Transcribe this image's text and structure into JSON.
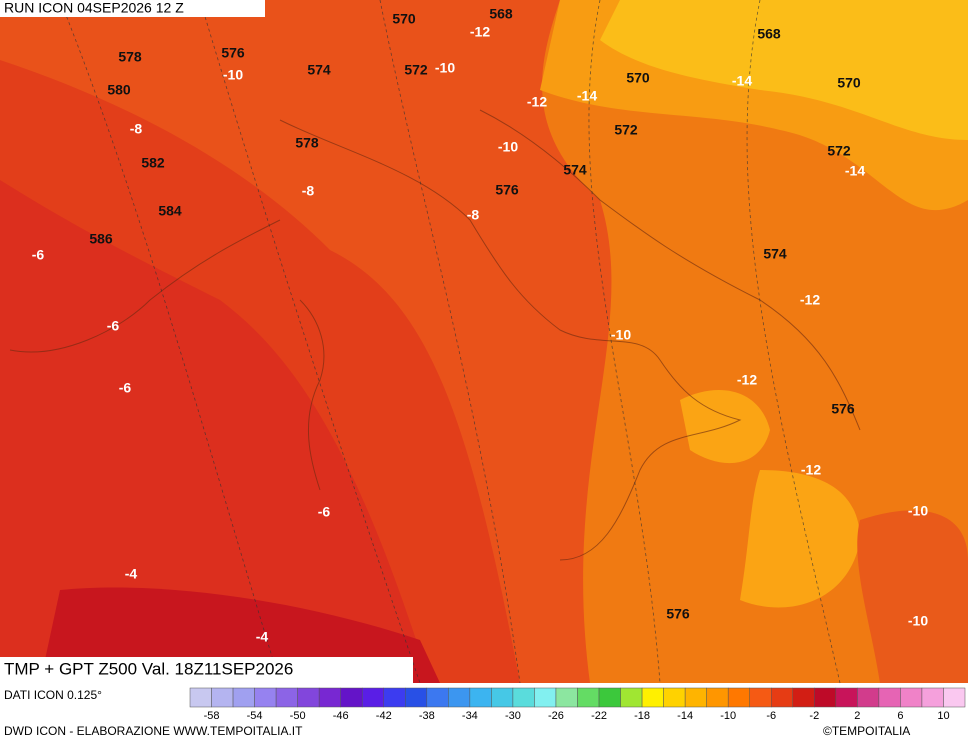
{
  "header": {
    "title": "RUN ICON 04SEP2026 12 Z"
  },
  "footer": {
    "caption": "TMP + GPT Z500 Val. 18Z11SEP2026",
    "source": "DATI ICON 0.125°",
    "credit": "DWD ICON - ELABORAZIONE WWW.TEMPOITALIA.IT",
    "copyright": "©TEMPOITALIA"
  },
  "map": {
    "labels": [
      570,
      568,
      -12,
      568,
      578,
      576,
      -10,
      574,
      572,
      -10,
      570,
      -14,
      570,
      580,
      -12,
      -14,
      -8,
      572,
      578,
      -10,
      572,
      582,
      574,
      -14,
      -8,
      576,
      584,
      -8,
      586,
      -6,
      574,
      -12,
      -6,
      -10,
      -12,
      -6,
      576,
      -12,
      -6,
      -10,
      -4,
      576,
      -4,
      -10
    ]
  },
  "colorbar": {
    "ticks": [
      -58,
      -54,
      -50,
      -46,
      -42,
      -38,
      -34,
      -30,
      -26,
      -22,
      -18,
      -14,
      -10,
      -6,
      -2,
      2,
      6,
      10
    ],
    "colors": [
      "#c8c8f0",
      "#b4b4f0",
      "#a0a0f0",
      "#9682f0",
      "#8c64e6",
      "#8246dc",
      "#7828d2",
      "#6414c8",
      "#5a1ee6",
      "#3c3cf0",
      "#2850e6",
      "#3c78f0",
      "#3c96f0",
      "#3cb4f0",
      "#46c8e6",
      "#5adcdc",
      "#82f0f0",
      "#8ce6a0",
      "#64dc64",
      "#3cc83c",
      "#a0e632",
      "#fff000",
      "#ffd200",
      "#ffb400",
      "#ff9600",
      "#ff7800",
      "#f55a14",
      "#e63c14",
      "#d21e14",
      "#be0a28",
      "#c8145a",
      "#d23c8c",
      "#e664b4",
      "#f082c8",
      "#f5a0dc",
      "#fac8f0"
    ]
  }
}
